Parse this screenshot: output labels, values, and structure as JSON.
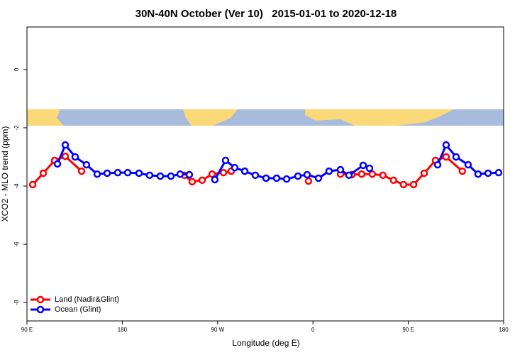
{
  "chart_data": {
    "type": "line",
    "title": "30N-40N October (Ver 10)   2015-01-01 to 2020-12-18",
    "xlabel": "Longitude (deg E)",
    "ylabel": "XCO2 - MLO trend (ppm)",
    "xlim": [
      90,
      540
    ],
    "ylim": [
      -8.63,
      1.46
    ],
    "xticks": [
      {
        "value": 90,
        "label": "90 E"
      },
      {
        "value": 180,
        "label": "180"
      },
      {
        "value": 270,
        "label": "90 W"
      },
      {
        "value": 360,
        "label": "0"
      },
      {
        "value": 450,
        "label": "90 E"
      },
      {
        "value": 540,
        "label": "180"
      }
    ],
    "yticks": [
      -8,
      -6,
      -4,
      -2,
      0
    ],
    "legend": "bottom-left",
    "series": [
      {
        "name": "Land (Nadir&Glint)",
        "color": "#ff0000",
        "x": [
          95.4,
          105.4,
          116.1,
          126.2,
          141.6,
          null,
          238.7,
          246,
          255.4,
          264.8,
          275.5,
          282.8,
          null,
          355.8,
          null,
          386,
          396.7,
          406,
          416,
          426,
          436,
          445.5,
          455,
          465,
          475.7,
          485.7,
          501
        ],
        "values": [
          -3.95,
          -3.56,
          -3.12,
          -2.98,
          -3.49,
          null,
          -3.63,
          -3.85,
          -3.8,
          -3.59,
          -3.54,
          -3.49,
          null,
          -3.83,
          null,
          -3.59,
          -3.61,
          -3.59,
          -3.59,
          -3.63,
          -3.8,
          -3.95,
          -3.95,
          -3.56,
          -3.12,
          -3.0,
          -3.49
        ]
      },
      {
        "name": "Ocean (Glint)",
        "color": "#0000ff",
        "x": [
          118.8,
          126.2,
          135.5,
          146.2,
          156.3,
          165.7,
          175.7,
          185.1,
          195.8,
          205.8,
          215.9,
          225.9,
          234.6,
          243.3,
          null,
          267.4,
          277.5,
          286.2,
          295.6,
          305.6,
          315.7,
          325.7,
          335.1,
          345.8,
          354.5,
          365.2,
          375.2,
          385.9,
          394,
          407.4,
          413.4,
          null,
          477.7,
          485.7,
          495.1,
          506.5,
          515.9,
          525.3,
          535.3
        ],
        "values": [
          -3.24,
          -2.59,
          -3.0,
          -3.27,
          -3.59,
          -3.56,
          -3.54,
          -3.54,
          -3.56,
          -3.63,
          -3.66,
          -3.66,
          -3.59,
          -3.61,
          null,
          -3.78,
          -3.12,
          -3.37,
          -3.49,
          -3.63,
          -3.73,
          -3.73,
          -3.76,
          -3.66,
          -3.61,
          -3.73,
          -3.49,
          -3.44,
          -3.63,
          -3.29,
          -3.39,
          null,
          -3.27,
          -2.59,
          -3.0,
          -3.27,
          -3.59,
          -3.56,
          -3.54
        ]
      }
    ]
  }
}
